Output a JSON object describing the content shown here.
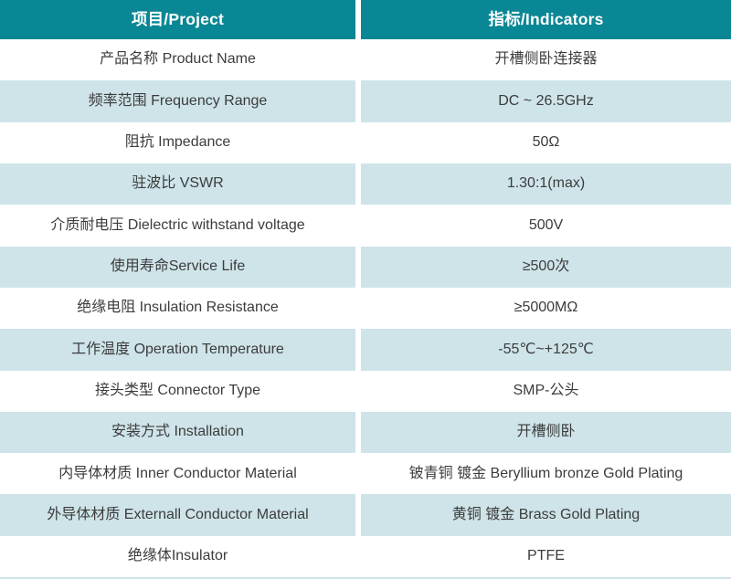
{
  "colors": {
    "header_bg": "#0a8794",
    "header_text": "#ffffff",
    "alt_row_bg": "#cee4e9",
    "row_bg": "#ffffff",
    "body_text": "#3c3c3c"
  },
  "table": {
    "header": {
      "project": "项目/Project",
      "indicator": "指标/Indicators"
    },
    "rows": [
      {
        "project": "产品名称 Product Name",
        "indicator": "开槽侧卧连接器"
      },
      {
        "project": "频率范围 Frequency Range",
        "indicator": "DC ~ 26.5GHz"
      },
      {
        "project": "阻抗 Impedance",
        "indicator": "50Ω"
      },
      {
        "project": "驻波比 VSWR",
        "indicator": "1.30:1(max)"
      },
      {
        "project": "介质耐电压 Dielectric withstand voltage",
        "indicator": "500V"
      },
      {
        "project": "使用寿命Service Life",
        "indicator": "≥500次"
      },
      {
        "project": "绝缘电阻 Insulation Resistance",
        "indicator": "≥5000MΩ"
      },
      {
        "project": "工作温度 Operation Temperature",
        "indicator": "-55℃~+125℃"
      },
      {
        "project": "接头类型  Connector Type",
        "indicator": "SMP-公头"
      },
      {
        "project": "安装方式 Installation",
        "indicator": "开槽侧卧"
      },
      {
        "project": "内导体材质 Inner Conductor Material",
        "indicator": "铍青铜 镀金 Beryllium bronze Gold Plating"
      },
      {
        "project": "外导体材质 Externall Conductor Material",
        "indicator": "黄铜 镀金  Brass Gold Plating"
      },
      {
        "project": "绝缘体Insulator",
        "indicator": "PTFE"
      }
    ]
  }
}
